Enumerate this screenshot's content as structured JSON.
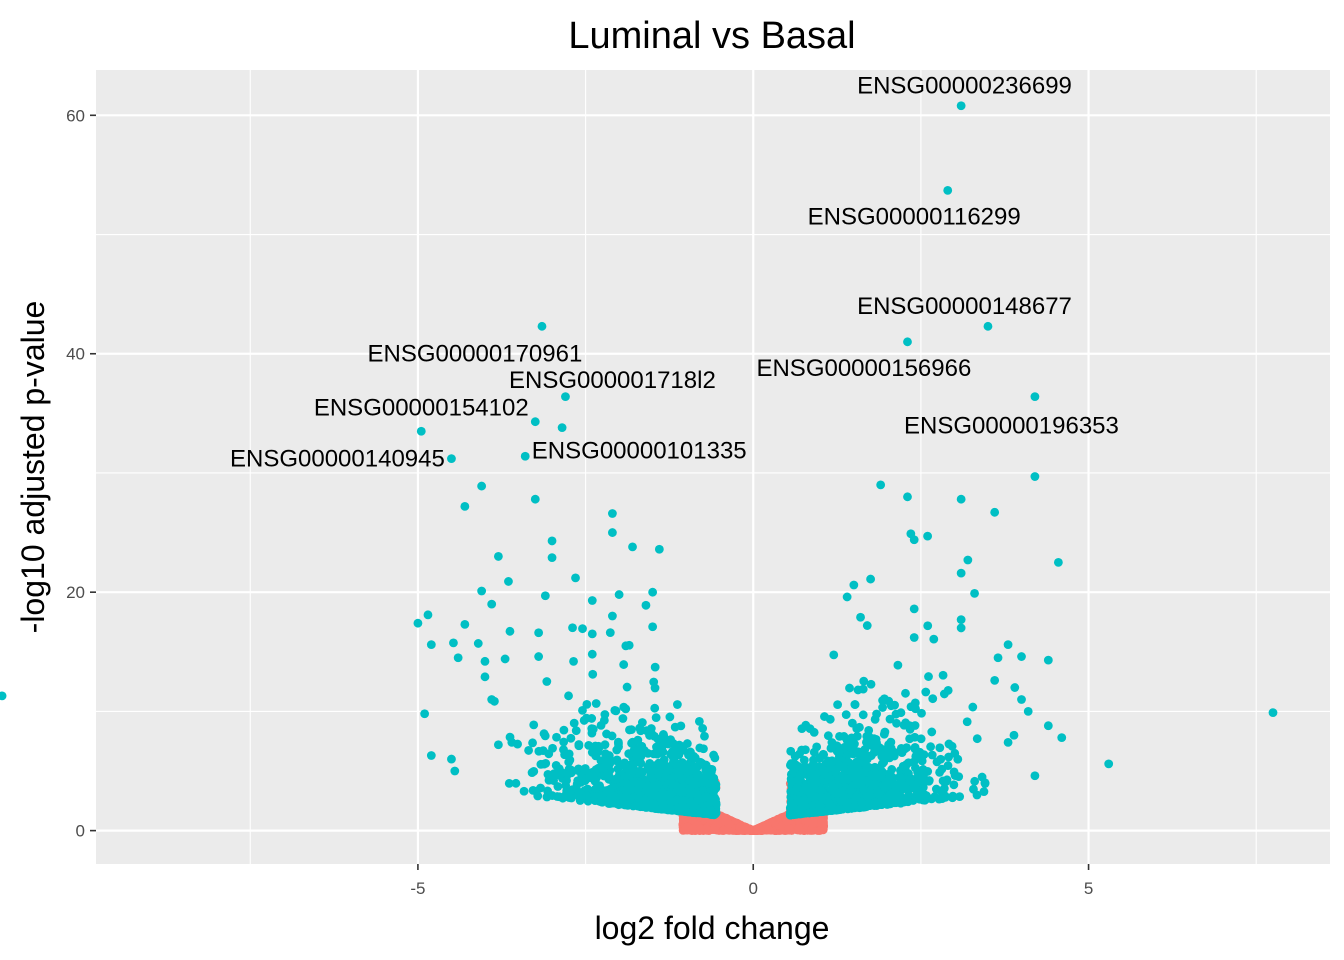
{
  "chart_data": {
    "type": "scatter",
    "title": "Luminal vs Basal",
    "xlabel": "log2 fold change",
    "ylabel": "-log10 adjusted p-value",
    "xlim": [
      -9.8,
      8.6
    ],
    "ylim": [
      -2.8,
      63.8
    ],
    "x_ticks": [
      -5,
      0,
      5
    ],
    "y_ticks": [
      0,
      20,
      40,
      60
    ],
    "x_tick_labels": [
      "-5",
      "0",
      "5"
    ],
    "y_tick_labels": [
      "0",
      "20",
      "40",
      "60"
    ],
    "grid": true,
    "legend": "none",
    "colors": {
      "panel": "#ebebeb",
      "grid": "#ffffff",
      "significant": "#00bfc4",
      "not_significant": "#f8766d"
    },
    "labels": [
      {
        "text": "ENSG00000236699",
        "x": 3.1,
        "y": 60.8,
        "lx": 3.15,
        "ly": 62.5
      },
      {
        "text": "ENSG00000116299",
        "x": 2.9,
        "y": 53.7,
        "lx": 2.4,
        "ly": 51.5
      },
      {
        "text": "ENSG00000148677",
        "x": 3.5,
        "y": 42.3,
        "lx": 3.15,
        "ly": 44.0
      },
      {
        "text": "ENSG00000156966",
        "x": 2.3,
        "y": 41.0,
        "lx": 1.65,
        "ly": 38.8
      },
      {
        "text": "ENSG00000196353",
        "x": 4.2,
        "y": 36.4,
        "lx": 3.85,
        "ly": 34.0
      },
      {
        "text": "ENSG00000170961",
        "x": -3.15,
        "y": 42.3,
        "lx": -4.15,
        "ly": 40.0
      },
      {
        "text": "ENSG000001718l2",
        "x": -2.8,
        "y": 36.4,
        "lx": -2.1,
        "ly": 37.8
      },
      {
        "text": "ENSG00000154102",
        "x": -4.95,
        "y": 33.5,
        "lx": -4.95,
        "ly": 35.5
      },
      {
        "text": "ENSG00000101335",
        "x": -3.4,
        "y": 31.4,
        "lx": -1.7,
        "ly": 31.9
      },
      {
        "text": "ENSG00000140945",
        "x": -4.5,
        "y": 31.2,
        "lx": -6.2,
        "ly": 31.2
      }
    ],
    "highlight_points": [
      {
        "x": 3.1,
        "y": 60.8
      },
      {
        "x": 2.9,
        "y": 53.7
      },
      {
        "x": 3.5,
        "y": 42.3
      },
      {
        "x": 2.3,
        "y": 41.0
      },
      {
        "x": 4.2,
        "y": 36.4
      },
      {
        "x": -3.15,
        "y": 42.3
      },
      {
        "x": -2.8,
        "y": 36.4
      },
      {
        "x": -4.95,
        "y": 33.5
      },
      {
        "x": -3.4,
        "y": 31.4
      },
      {
        "x": -4.5,
        "y": 31.2
      },
      {
        "x": -2.85,
        "y": 33.8
      },
      {
        "x": -3.25,
        "y": 34.3
      },
      {
        "x": 4.2,
        "y": 29.7
      },
      {
        "x": 1.9,
        "y": 29.0
      },
      {
        "x": 2.3,
        "y": 28.0
      },
      {
        "x": 3.1,
        "y": 27.8
      },
      {
        "x": 3.6,
        "y": 26.7
      },
      {
        "x": -4.05,
        "y": 28.9
      },
      {
        "x": -3.25,
        "y": 27.8
      },
      {
        "x": -4.3,
        "y": 27.2
      },
      {
        "x": -2.1,
        "y": 26.6
      },
      {
        "x": -2.1,
        "y": 25.0
      },
      {
        "x": 2.35,
        "y": 24.9
      },
      {
        "x": 2.6,
        "y": 24.7
      },
      {
        "x": 2.4,
        "y": 24.4
      },
      {
        "x": -3.0,
        "y": 24.3
      },
      {
        "x": -1.8,
        "y": 23.8
      },
      {
        "x": -1.4,
        "y": 23.6
      },
      {
        "x": -3.8,
        "y": 23.0
      },
      {
        "x": -3.0,
        "y": 22.9
      },
      {
        "x": 3.2,
        "y": 22.7
      },
      {
        "x": 4.55,
        "y": 22.5
      },
      {
        "x": 3.1,
        "y": 21.6
      },
      {
        "x": 1.75,
        "y": 21.1
      },
      {
        "x": -3.65,
        "y": 20.9
      },
      {
        "x": -2.65,
        "y": 21.2
      },
      {
        "x": 1.5,
        "y": 20.6
      },
      {
        "x": 3.3,
        "y": 19.9
      },
      {
        "x": -4.05,
        "y": 20.1
      },
      {
        "x": -3.1,
        "y": 19.7
      },
      {
        "x": -2.0,
        "y": 19.8
      },
      {
        "x": -1.5,
        "y": 20.0
      },
      {
        "x": 1.4,
        "y": 19.6
      },
      {
        "x": -3.9,
        "y": 19.0
      },
      {
        "x": -2.4,
        "y": 19.3
      },
      {
        "x": -1.6,
        "y": 18.9
      },
      {
        "x": 2.4,
        "y": 18.6
      },
      {
        "x": -4.85,
        "y": 18.1
      },
      {
        "x": -2.1,
        "y": 18.0
      },
      {
        "x": 1.6,
        "y": 17.9
      },
      {
        "x": -5.0,
        "y": 17.4
      },
      {
        "x": -4.3,
        "y": 17.3
      },
      {
        "x": 1.7,
        "y": 17.2
      },
      {
        "x": -1.5,
        "y": 17.1
      },
      {
        "x": 3.1,
        "y": 17.0
      },
      {
        "x": 3.1,
        "y": 17.7
      },
      {
        "x": -3.2,
        "y": 16.6
      },
      {
        "x": -2.4,
        "y": 16.5
      },
      {
        "x": 2.4,
        "y": 16.2
      },
      {
        "x": -4.8,
        "y": 15.6
      },
      {
        "x": -4.1,
        "y": 15.7
      },
      {
        "x": -1.9,
        "y": 15.5
      },
      {
        "x": 3.8,
        "y": 15.6
      },
      {
        "x": -4.4,
        "y": 14.5
      },
      {
        "x": -4.0,
        "y": 14.2
      },
      {
        "x": -3.2,
        "y": 14.6
      },
      {
        "x": -2.4,
        "y": 14.8
      },
      {
        "x": 3.65,
        "y": 14.5
      },
      {
        "x": 4.0,
        "y": 14.6
      },
      {
        "x": -3.7,
        "y": 14.4
      },
      {
        "x": 4.4,
        "y": 14.3
      },
      {
        "x": -11.2,
        "y": 11.3
      },
      {
        "x": 7.75,
        "y": 9.9
      },
      {
        "x": -4.9,
        "y": 9.8
      },
      {
        "x": 4.6,
        "y": 7.8
      },
      {
        "x": 4.4,
        "y": 8.8
      },
      {
        "x": 5.3,
        "y": 5.6
      },
      {
        "x": 4.2,
        "y": 4.6
      },
      {
        "x": -4.45,
        "y": 5.0
      },
      {
        "x": -4.8,
        "y": 6.3
      },
      {
        "x": -4.5,
        "y": 6.0
      },
      {
        "x": -3.8,
        "y": 7.2
      },
      {
        "x": -3.6,
        "y": 7.4
      },
      {
        "x": 3.8,
        "y": 7.4
      },
      {
        "x": -4.0,
        "y": 12.9
      },
      {
        "x": -3.9,
        "y": 11.0
      },
      {
        "x": 3.6,
        "y": 12.6
      },
      {
        "x": 3.9,
        "y": 12.0
      },
      {
        "x": 4.0,
        "y": 11.0
      },
      {
        "x": 4.1,
        "y": 10.0
      }
    ]
  }
}
